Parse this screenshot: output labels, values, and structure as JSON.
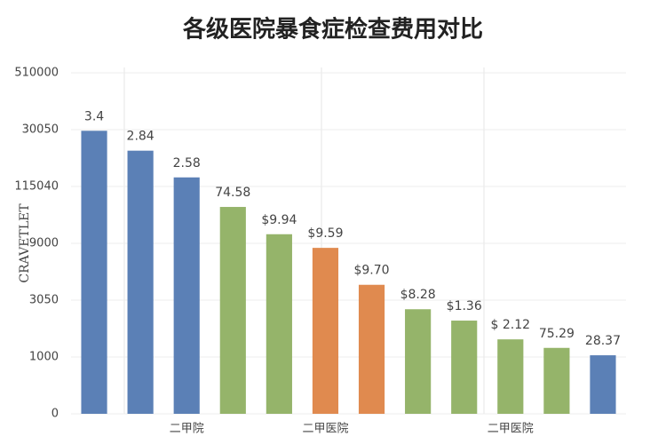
{
  "chart_data": {
    "type": "bar",
    "title": "各级医院暴食症检查费用对比",
    "y_label": "CRAVETLET",
    "categories": [
      null,
      null,
      "二甲院",
      null,
      null,
      "二甲医院",
      null,
      null,
      null,
      "二甲医院",
      null,
      null
    ],
    "values": [
      4.98,
      4.63,
      4.16,
      3.64,
      3.16,
      2.92,
      2.27,
      1.84,
      1.64,
      1.31,
      1.16,
      1.03
    ],
    "annotations": [
      "3.4",
      "2.84",
      "2.58",
      "74.58",
      "$9.94",
      "$9.59",
      "$9.70",
      "$8.28",
      "$1.36",
      "$ 2.12",
      "75.29",
      "28.37"
    ],
    "colors": [
      "#5b80b6",
      "#5b80b6",
      "#5b80b6",
      "#95b46a",
      "#95b46a",
      "#e08a4f",
      "#e08a4f",
      "#95b46a",
      "#95b46a",
      "#95b46a",
      "#95b46a",
      "#5b80b6"
    ],
    "ylim": [
      0,
      6
    ],
    "yticks": [
      0,
      {
        "value": 1,
        "label": "1000"
      },
      {
        "value": 2,
        "label": "3050"
      },
      {
        "value": 3,
        "label": "9000"
      },
      {
        "value": 4,
        "label": "115040"
      },
      {
        "value": 5,
        "label": "30050"
      },
      {
        "value": 6,
        "label": "510000"
      }
    ],
    "grid": true
  }
}
